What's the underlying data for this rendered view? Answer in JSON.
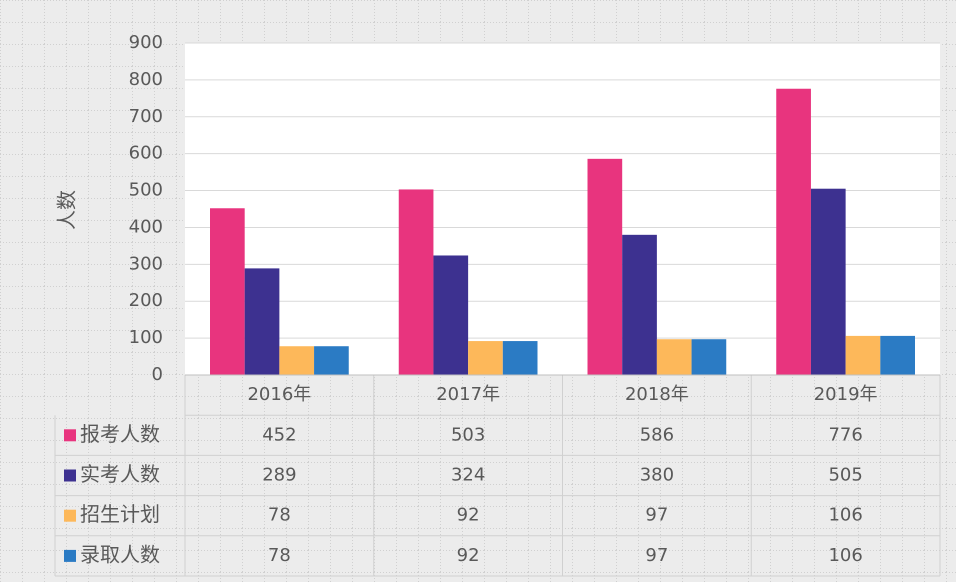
{
  "chart_data": {
    "type": "bar",
    "y_label": "人数",
    "categories": [
      "2016年",
      "2017年",
      "2018年",
      "2019年"
    ],
    "series": [
      {
        "name": "报考人数",
        "color": "#e8347e",
        "values": [
          452,
          503,
          586,
          776
        ]
      },
      {
        "name": "实考人数",
        "color": "#3d3190",
        "values": [
          289,
          324,
          380,
          505
        ]
      },
      {
        "name": "招生计划",
        "color": "#fdb85a",
        "values": [
          78,
          92,
          97,
          106
        ]
      },
      {
        "name": "录取人数",
        "color": "#2b7bc4",
        "values": [
          78,
          92,
          97,
          106
        ]
      }
    ],
    "ylim": [
      0,
      900
    ],
    "yticks": [
      0,
      100,
      200,
      300,
      400,
      500,
      600,
      700,
      800,
      900
    ],
    "grid": true
  }
}
